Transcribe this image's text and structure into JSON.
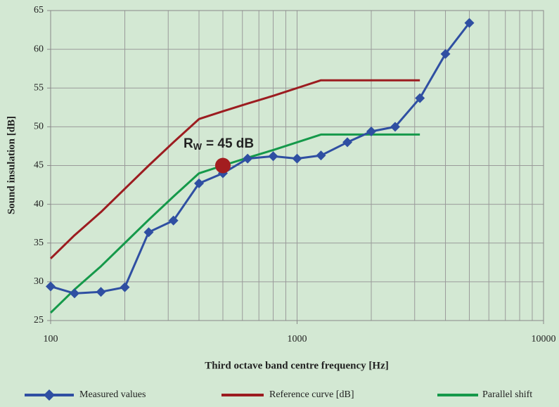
{
  "chart_data": {
    "type": "line",
    "x_label": "Third octave band centre frequency [Hz]",
    "y_label": "Sound insulation [dB]",
    "x": [
      100,
      125,
      160,
      200,
      250,
      315,
      400,
      500,
      630,
      800,
      1000,
      1250,
      1600,
      2000,
      2500,
      3150,
      4000,
      5000
    ],
    "series": [
      {
        "name": "Measured values",
        "color": "#2f4fa2",
        "marker": "diamond",
        "values": [
          29.4,
          28.5,
          28.7,
          29.3,
          36.4,
          37.9,
          42.7,
          44.0,
          45.9,
          46.2,
          45.9,
          46.3,
          48.0,
          49.4,
          50.0,
          53.7,
          59.4,
          63.4
        ]
      },
      {
        "name": "Reference curve [dB]",
        "color": "#9c1c20",
        "values": [
          33,
          36,
          39,
          42,
          45,
          48,
          51,
          52,
          53,
          54,
          55,
          56,
          56,
          56,
          56,
          56,
          null,
          null
        ]
      },
      {
        "name": "Parallel shift",
        "color": "#15994a",
        "values": [
          26,
          29,
          32,
          35,
          38,
          41,
          44,
          45,
          46,
          47,
          48,
          49,
          49,
          49,
          49,
          49,
          null,
          null
        ]
      }
    ],
    "annotation": {
      "label": "R",
      "subscript": "W",
      "rest": "= 45 dB",
      "x": 500,
      "y": 45,
      "color": "#a31d1f"
    },
    "xlim": [
      100,
      10000
    ],
    "xscale": "log",
    "xticks": [
      100,
      1000,
      10000
    ],
    "xminorticks": [
      200,
      300,
      400,
      500,
      600,
      700,
      800,
      900,
      2000,
      3000,
      4000,
      5000,
      6000,
      7000,
      8000,
      9000
    ],
    "ylim": [
      25,
      65
    ],
    "yticks": [
      25,
      30,
      35,
      40,
      45,
      50,
      55,
      60,
      65
    ],
    "grid": true
  }
}
